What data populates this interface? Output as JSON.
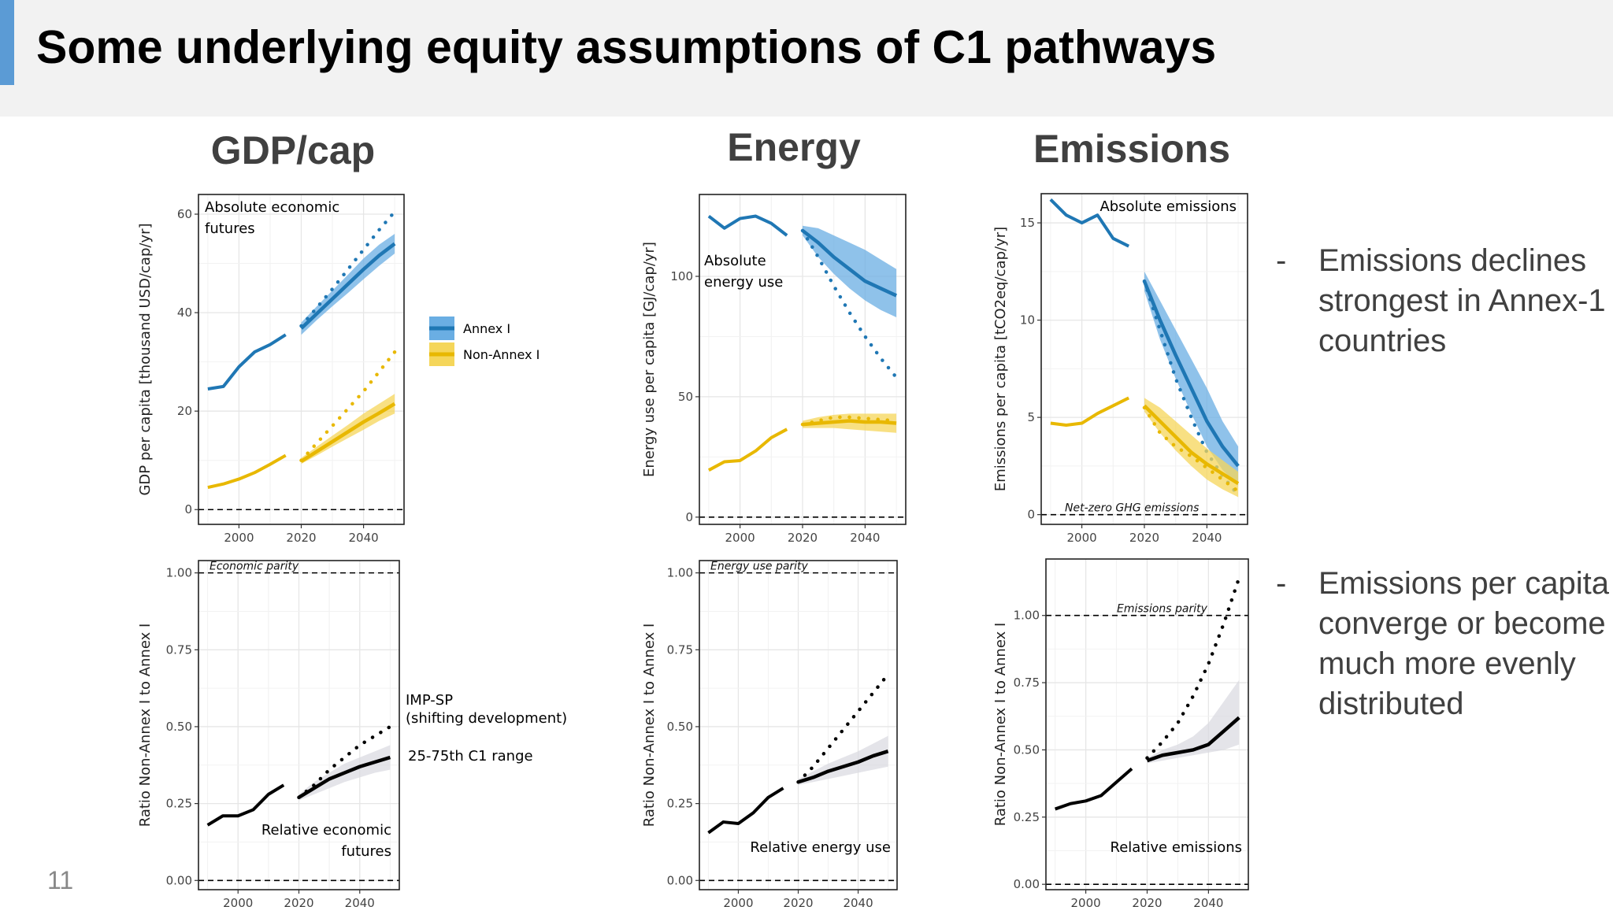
{
  "slide": {
    "title": "Some underlying equity assumptions of C1 pathways",
    "number": "11",
    "columns": [
      "GDP/cap",
      "Energy",
      "Emissions"
    ],
    "bullets": [
      {
        "dash": "-",
        "text": "Emissions declines strongest in Annex-1 countries"
      },
      {
        "dash": "-",
        "text": "Emissions per capita converge or become much more evenly distributed"
      }
    ],
    "legend": {
      "annex": "Annex I",
      "nonannex": "Non-Annex I"
    },
    "annotations": {
      "imp": "IMP-SP\n(shifting development)",
      "range": "25-75th C1 range"
    }
  },
  "colors": {
    "annex": "#1f77b4",
    "annex_fill": "#6aaee3",
    "nonannex": "#e8b800",
    "nonannex_fill": "#f5d65a",
    "ratio": "#000000",
    "ratio_fill": "#d8d8e0",
    "accent": "#5b9bd5"
  },
  "chart_data": [
    {
      "type": "line",
      "ylabel": "GDP per capita [thousand USD/cap/yr]",
      "annotation": "Absolute economic\nfutures",
      "ylim": [
        -3,
        64
      ],
      "xlim": [
        1987,
        2053
      ],
      "yticks": [
        0,
        20,
        40,
        60
      ],
      "xticks": [
        2000,
        2020,
        2040
      ],
      "zero_line": true,
      "series": [
        {
          "name": "Annex I",
          "color": "annex",
          "fill": "annex_fill",
          "hist": {
            "x": [
              1990,
              1995,
              2000,
              2005,
              2010,
              2015
            ],
            "y": [
              24.5,
              25,
              29,
              32,
              33.5,
              35.5
            ]
          },
          "proj_x": [
            2020,
            2025,
            2030,
            2035,
            2040,
            2045,
            2050
          ],
          "median": [
            36.8,
            39.8,
            42.8,
            45.8,
            48.8,
            51.6,
            54
          ],
          "lower": [
            35.5,
            38.5,
            41.3,
            44,
            46.8,
            49.5,
            52
          ],
          "upper": [
            38,
            41.3,
            44.5,
            47.7,
            51,
            53.8,
            56
          ],
          "imp": [
            37.3,
            41,
            44.8,
            48.8,
            52.8,
            56.8,
            60.5
          ]
        },
        {
          "name": "Non-Annex I",
          "color": "nonannex",
          "fill": "nonannex_fill",
          "hist": {
            "x": [
              1990,
              1995,
              2000,
              2005,
              2010,
              2015
            ],
            "y": [
              4.5,
              5.2,
              6.2,
              7.5,
              9.2,
              11
            ]
          },
          "proj_x": [
            2020,
            2025,
            2030,
            2035,
            2040,
            2045,
            2050
          ],
          "median": [
            9.8,
            11.8,
            13.8,
            15.8,
            17.8,
            19.6,
            21.5
          ],
          "lower": [
            9.3,
            11,
            12.8,
            14.5,
            16.2,
            18,
            19.5
          ],
          "upper": [
            10.5,
            12.8,
            15,
            17.2,
            19.5,
            21.5,
            23.5
          ],
          "imp": [
            10,
            13.5,
            17,
            20.5,
            24,
            28,
            32
          ]
        }
      ]
    },
    {
      "type": "line",
      "ylabel": "Energy use per capita [GJ/cap/yr]",
      "annotation": "Absolute\nenergy use",
      "ylim": [
        -3,
        134
      ],
      "xlim": [
        1987,
        2053
      ],
      "yticks": [
        0,
        50,
        100
      ],
      "xticks": [
        2000,
        2020,
        2040
      ],
      "zero_line": true,
      "series": [
        {
          "name": "Annex I",
          "color": "annex",
          "fill": "annex_fill",
          "hist": {
            "x": [
              1990,
              1995,
              2000,
              2005,
              2010,
              2015
            ],
            "y": [
              125,
              120,
              124,
              125,
              122,
              117
            ]
          },
          "proj_x": [
            2020,
            2025,
            2030,
            2035,
            2040,
            2045,
            2050
          ],
          "median": [
            119,
            114,
            108,
            103,
            98,
            95,
            92
          ],
          "lower": [
            117,
            108,
            101,
            95,
            90,
            86,
            83
          ],
          "upper": [
            121,
            120,
            117,
            114,
            111,
            107,
            103
          ],
          "imp": [
            119,
            108,
            96,
            85,
            75,
            66,
            58
          ]
        },
        {
          "name": "Non-Annex I",
          "color": "nonannex",
          "fill": "nonannex_fill",
          "hist": {
            "x": [
              1990,
              1995,
              2000,
              2005,
              2010,
              2015
            ],
            "y": [
              19.5,
              23,
              23.5,
              27.5,
              33,
              36.5
            ]
          },
          "proj_x": [
            2020,
            2025,
            2030,
            2035,
            2040,
            2045,
            2050
          ],
          "median": [
            38.5,
            39,
            39.5,
            40,
            39.5,
            39.5,
            39
          ],
          "lower": [
            37,
            37,
            37,
            36.5,
            36,
            35.5,
            35
          ],
          "upper": [
            40,
            41.5,
            42.5,
            43,
            43,
            43,
            43
          ],
          "imp": [
            38.5,
            40,
            41.5,
            41.5,
            41,
            40.5,
            40
          ]
        }
      ]
    },
    {
      "type": "line",
      "ylabel": "Emissions per capita [tCO2eq/cap/yr]",
      "annotation": "Absolute emissions",
      "zero_label": "Net-zero GHG emissions",
      "ylim": [
        -0.5,
        16.5
      ],
      "xlim": [
        1987,
        2053
      ],
      "yticks": [
        0,
        5,
        10,
        15
      ],
      "xticks": [
        2000,
        2020,
        2040
      ],
      "zero_line": true,
      "series": [
        {
          "name": "Annex I",
          "color": "annex",
          "fill": "annex_fill",
          "hist": {
            "x": [
              1990,
              1995,
              2000,
              2005,
              2010,
              2015
            ],
            "y": [
              16.2,
              15.4,
              15,
              15.4,
              14.2,
              13.8
            ]
          },
          "proj_x": [
            2020,
            2025,
            2030,
            2035,
            2040,
            2045,
            2050
          ],
          "median": [
            12,
            10,
            8.2,
            6.5,
            4.8,
            3.5,
            2.5
          ],
          "lower": [
            11.5,
            9,
            7,
            5.2,
            3.5,
            2.3,
            1.5
          ],
          "upper": [
            12.5,
            11,
            9.5,
            8,
            6.5,
            4.8,
            3.5
          ],
          "imp": [
            12,
            9.5,
            7,
            5,
            3.2,
            2,
            1
          ]
        },
        {
          "name": "Non-Annex I",
          "color": "nonannex",
          "fill": "nonannex_fill",
          "hist": {
            "x": [
              1990,
              1995,
              2000,
              2005,
              2010,
              2015
            ],
            "y": [
              4.7,
              4.6,
              4.7,
              5.2,
              5.6,
              6
            ]
          },
          "proj_x": [
            2020,
            2025,
            2030,
            2035,
            2040,
            2045,
            2050
          ],
          "median": [
            5.6,
            4.8,
            4,
            3.2,
            2.6,
            2.1,
            1.6
          ],
          "lower": [
            5.3,
            4.2,
            3.3,
            2.5,
            1.8,
            1.3,
            0.9
          ],
          "upper": [
            6,
            5.5,
            4.8,
            4.1,
            3.4,
            2.8,
            2.2
          ],
          "imp": [
            5.5,
            4.2,
            3.5,
            3,
            2.4,
            1.8,
            1.2
          ]
        }
      ]
    },
    {
      "type": "line",
      "ylabel": "Ratio Non-Annex I to Annex I",
      "annotation": "Relative economic\nfutures",
      "parity_label": "Economic parity",
      "ylim": [
        -0.03,
        1.04
      ],
      "xlim": [
        1987,
        2053
      ],
      "yticks": [
        0.0,
        0.25,
        0.5,
        0.75,
        1.0
      ],
      "xticks": [
        2000,
        2020,
        2040
      ],
      "parity": 1.0,
      "series": [
        {
          "name": "",
          "color": "ratio",
          "fill": "ratio_fill",
          "hist": {
            "x": [
              1990,
              1995,
              2000,
              2005,
              2010,
              2015
            ],
            "y": [
              0.18,
              0.21,
              0.21,
              0.23,
              0.28,
              0.31
            ]
          },
          "proj_x": [
            2020,
            2025,
            2030,
            2035,
            2040,
            2045,
            2050
          ],
          "median": [
            0.27,
            0.3,
            0.33,
            0.35,
            0.37,
            0.385,
            0.4
          ],
          "lower": [
            0.26,
            0.28,
            0.3,
            0.32,
            0.335,
            0.35,
            0.36
          ],
          "upper": [
            0.28,
            0.32,
            0.35,
            0.38,
            0.4,
            0.42,
            0.44
          ],
          "imp": [
            0.27,
            0.31,
            0.36,
            0.4,
            0.44,
            0.47,
            0.5
          ]
        }
      ]
    },
    {
      "type": "line",
      "ylabel": "Ratio Non-Annex I to Annex I",
      "annotation": "Relative energy use",
      "parity_label": "Energy use parity",
      "ylim": [
        -0.03,
        1.04
      ],
      "xlim": [
        1987,
        2053
      ],
      "yticks": [
        0.0,
        0.25,
        0.5,
        0.75,
        1.0
      ],
      "xticks": [
        2000,
        2020,
        2040
      ],
      "parity": 1.0,
      "series": [
        {
          "name": "",
          "color": "ratio",
          "fill": "ratio_fill",
          "hist": {
            "x": [
              1990,
              1995,
              2000,
              2005,
              2010,
              2015
            ],
            "y": [
              0.155,
              0.19,
              0.185,
              0.22,
              0.27,
              0.3
            ]
          },
          "proj_x": [
            2020,
            2025,
            2030,
            2035,
            2040,
            2045,
            2050
          ],
          "median": [
            0.32,
            0.335,
            0.355,
            0.37,
            0.385,
            0.405,
            0.42
          ],
          "lower": [
            0.31,
            0.32,
            0.33,
            0.34,
            0.35,
            0.36,
            0.37
          ],
          "upper": [
            0.33,
            0.355,
            0.38,
            0.4,
            0.42,
            0.445,
            0.47
          ],
          "imp": [
            0.32,
            0.37,
            0.43,
            0.49,
            0.55,
            0.61,
            0.67
          ]
        }
      ]
    },
    {
      "type": "line",
      "ylabel": "Ratio Non-Annex I to Annex I",
      "annotation": "Relative emissions",
      "parity_label": "Emissions parity",
      "ylim": [
        -0.02,
        1.21
      ],
      "xlim": [
        1987,
        2053
      ],
      "yticks": [
        0.0,
        0.25,
        0.5,
        0.75,
        1.0
      ],
      "xticks": [
        2000,
        2020,
        2040
      ],
      "parity": 1.0,
      "series": [
        {
          "name": "",
          "color": "ratio",
          "fill": "ratio_fill",
          "hist": {
            "x": [
              1990,
              1995,
              2000,
              2005,
              2010,
              2015
            ],
            "y": [
              0.28,
              0.3,
              0.31,
              0.33,
              0.38,
              0.43
            ]
          },
          "proj_x": [
            2020,
            2025,
            2030,
            2035,
            2040,
            2045,
            2050
          ],
          "median": [
            0.46,
            0.48,
            0.49,
            0.5,
            0.52,
            0.57,
            0.62
          ],
          "lower": [
            0.45,
            0.46,
            0.47,
            0.48,
            0.49,
            0.5,
            0.52
          ],
          "upper": [
            0.47,
            0.5,
            0.52,
            0.55,
            0.6,
            0.68,
            0.76
          ],
          "imp": [
            0.47,
            0.53,
            0.6,
            0.7,
            0.82,
            0.97,
            1.14
          ]
        }
      ]
    }
  ]
}
